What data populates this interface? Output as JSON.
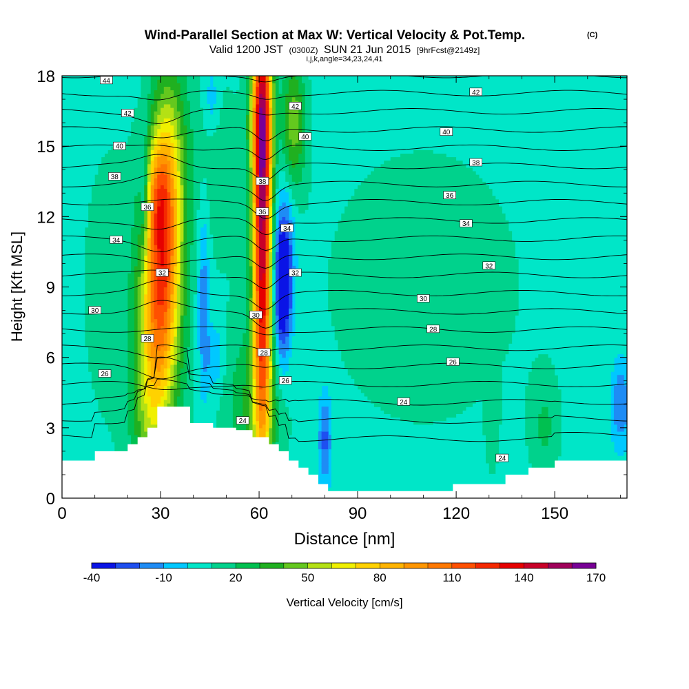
{
  "title": {
    "main": "Wind-Parallel Section at Max W: Vertical Velocity & Pot.Temp.",
    "copyright": "(C)",
    "valid_prefix": "Valid 1200 JST",
    "valid_utc": "(0300Z)",
    "valid_date": "SUN 21 Jun 2015",
    "forecast": "[9hrFcst@2149z]",
    "indices": "i,j,k,angle=34,23,24,41"
  },
  "chart_data": {
    "type": "heatmap",
    "xlabel": "Distance [nm]",
    "ylabel": "Height [Kft MSL]",
    "xlim": [
      0,
      172
    ],
    "ylim": [
      0,
      18
    ],
    "xticks": [
      0,
      30,
      60,
      90,
      120,
      150
    ],
    "yticks": [
      0,
      3,
      6,
      9,
      12,
      15,
      18
    ],
    "colorbar": {
      "label": "Vertical Velocity [cm/s]",
      "levels": [
        -40,
        -30,
        -20,
        -10,
        0,
        10,
        20,
        30,
        40,
        50,
        60,
        70,
        80,
        90,
        100,
        110,
        120,
        130,
        140,
        150,
        160,
        170
      ],
      "tick_labels": [
        "-40",
        "-10",
        "20",
        "50",
        "80",
        "110",
        "140",
        "170"
      ],
      "colors": [
        "#0a14e6",
        "#1e4ff0",
        "#1e8cf5",
        "#00c8ff",
        "#00e6c8",
        "#00d28c",
        "#00c050",
        "#20b020",
        "#64c81e",
        "#b4e114",
        "#f0f000",
        "#ffd200",
        "#ffb400",
        "#ff9600",
        "#ff7800",
        "#ff5000",
        "#f52800",
        "#e60000",
        "#c80028",
        "#a0005a",
        "#780096"
      ]
    },
    "background_velocity": 5,
    "terrain": [
      [
        0,
        1.6
      ],
      [
        10,
        1.6
      ],
      [
        10,
        2.0
      ],
      [
        20,
        2.0
      ],
      [
        20,
        2.3
      ],
      [
        23,
        2.3
      ],
      [
        23,
        2.6
      ],
      [
        26,
        2.6
      ],
      [
        26,
        3.0
      ],
      [
        29,
        3.0
      ],
      [
        29,
        3.9
      ],
      [
        39,
        3.9
      ],
      [
        39,
        3.2
      ],
      [
        46,
        3.2
      ],
      [
        46,
        3.0
      ],
      [
        53,
        3.0
      ],
      [
        53,
        2.9
      ],
      [
        58,
        2.9
      ],
      [
        58,
        2.6
      ],
      [
        63,
        2.6
      ],
      [
        63,
        2.3
      ],
      [
        66,
        2.3
      ],
      [
        66,
        2.0
      ],
      [
        69,
        2.0
      ],
      [
        69,
        1.6
      ],
      [
        72,
        1.6
      ],
      [
        72,
        1.3
      ],
      [
        75,
        1.3
      ],
      [
        75,
        1.0
      ],
      [
        78,
        1.0
      ],
      [
        78,
        0.6
      ],
      [
        81,
        0.6
      ],
      [
        81,
        0.3
      ],
      [
        110,
        0.3
      ],
      [
        110,
        0.3
      ],
      [
        119,
        0.3
      ],
      [
        119,
        0.6
      ],
      [
        135,
        0.6
      ],
      [
        135,
        1.0
      ],
      [
        142,
        1.0
      ],
      [
        142,
        1.3
      ],
      [
        150,
        1.3
      ],
      [
        150,
        1.6
      ],
      [
        172,
        1.6
      ]
    ],
    "velocity_features": [
      {
        "x": 30.5,
        "y": 10.5,
        "sx": 4.0,
        "sy": 4.5,
        "amp": 115,
        "tilt": 0.25
      },
      {
        "x": 29.0,
        "y": 13.0,
        "sx": 2.5,
        "sy": 1.5,
        "amp": 25,
        "tilt": 0
      },
      {
        "x": 61.0,
        "y": 12.0,
        "sx": 2.0,
        "sy": 7.0,
        "amp": 145,
        "tilt": 0
      },
      {
        "x": 60.5,
        "y": 16.5,
        "sx": 2.5,
        "sy": 2.0,
        "amp": 40,
        "tilt": 0
      },
      {
        "x": 70.5,
        "y": 16.0,
        "sx": 2.5,
        "sy": 2.0,
        "amp": 40,
        "tilt": 0
      },
      {
        "x": 26.0,
        "y": 3.5,
        "sx": 4.0,
        "sy": 2.5,
        "amp": 20,
        "tilt": 0
      },
      {
        "x": 33.0,
        "y": 6.0,
        "sx": 5.0,
        "sy": 3.0,
        "amp": 15,
        "tilt": 0
      },
      {
        "x": 58.0,
        "y": 4.0,
        "sx": 6.0,
        "sy": 2.5,
        "amp": 25,
        "tilt": 0
      },
      {
        "x": 16.0,
        "y": 9.0,
        "sx": 8.0,
        "sy": 5.0,
        "amp": 10,
        "tilt": 0
      },
      {
        "x": 47.0,
        "y": 14.0,
        "sx": 8.0,
        "sy": 3.0,
        "amp": 10,
        "tilt": 0
      },
      {
        "x": 110.0,
        "y": 9.0,
        "sx": 30.0,
        "sy": 6.0,
        "amp": 8,
        "tilt": 0
      },
      {
        "x": 147.0,
        "y": 3.0,
        "sx": 3.0,
        "sy": 1.5,
        "amp": 15,
        "tilt": 0
      },
      {
        "x": 131.0,
        "y": 3.2,
        "sx": 1.2,
        "sy": 1.2,
        "amp": 12,
        "tilt": 0
      },
      {
        "x": 67.0,
        "y": 8.5,
        "sx": 2.0,
        "sy": 2.0,
        "amp": -50,
        "tilt": 0
      },
      {
        "x": 67.5,
        "y": 11.0,
        "sx": 2.5,
        "sy": 2.0,
        "amp": -25,
        "tilt": 0
      },
      {
        "x": 25.0,
        "y": 13.0,
        "sx": 1.0,
        "sy": 1.8,
        "amp": -25,
        "tilt": 0
      },
      {
        "x": 43.0,
        "y": 8.5,
        "sx": 1.3,
        "sy": 3.0,
        "amp": -25,
        "tilt": 0
      },
      {
        "x": 46.5,
        "y": 6.0,
        "sx": 2.0,
        "sy": 1.0,
        "amp": -18,
        "tilt": 0
      },
      {
        "x": 45.5,
        "y": 17.0,
        "sx": 1.5,
        "sy": 1.0,
        "amp": -15,
        "tilt": 0
      },
      {
        "x": 80.0,
        "y": 2.5,
        "sx": 1.5,
        "sy": 1.5,
        "amp": -30,
        "tilt": 0
      },
      {
        "x": 170.0,
        "y": 4.0,
        "sx": 2.0,
        "sy": 1.3,
        "amp": -25,
        "tilt": 0
      }
    ],
    "theta_levels": [
      22,
      23,
      24,
      25,
      26,
      27,
      28,
      29,
      30,
      31,
      32,
      33,
      34,
      35,
      36,
      37,
      38,
      39,
      40,
      41,
      42,
      43,
      44,
      45
    ],
    "theta_labels": [
      {
        "x": 13.5,
        "y": 17.8,
        "text": "44"
      },
      {
        "x": 20,
        "y": 16.4,
        "text": "42"
      },
      {
        "x": 17.5,
        "y": 15.0,
        "text": "40"
      },
      {
        "x": 16,
        "y": 13.7,
        "text": "38"
      },
      {
        "x": 26,
        "y": 12.4,
        "text": "36"
      },
      {
        "x": 16.5,
        "y": 11.0,
        "text": "34"
      },
      {
        "x": 30.5,
        "y": 9.6,
        "text": "32"
      },
      {
        "x": 10,
        "y": 8.0,
        "text": "30"
      },
      {
        "x": 26,
        "y": 6.8,
        "text": "28"
      },
      {
        "x": 13,
        "y": 5.3,
        "text": "26"
      },
      {
        "x": 55,
        "y": 3.3,
        "text": "24"
      },
      {
        "x": 71,
        "y": 16.7,
        "text": "42"
      },
      {
        "x": 74,
        "y": 15.4,
        "text": "40"
      },
      {
        "x": 61,
        "y": 13.5,
        "text": "38"
      },
      {
        "x": 61,
        "y": 12.2,
        "text": "36"
      },
      {
        "x": 68.5,
        "y": 11.5,
        "text": "34"
      },
      {
        "x": 71,
        "y": 9.6,
        "text": "32"
      },
      {
        "x": 59,
        "y": 7.8,
        "text": "30"
      },
      {
        "x": 61.5,
        "y": 6.2,
        "text": "28"
      },
      {
        "x": 68,
        "y": 5.0,
        "text": "26"
      },
      {
        "x": 126,
        "y": 17.3,
        "text": "42"
      },
      {
        "x": 117,
        "y": 15.6,
        "text": "40"
      },
      {
        "x": 126,
        "y": 14.3,
        "text": "38"
      },
      {
        "x": 118,
        "y": 12.9,
        "text": "36"
      },
      {
        "x": 123,
        "y": 11.7,
        "text": "34"
      },
      {
        "x": 130,
        "y": 9.9,
        "text": "32"
      },
      {
        "x": 110,
        "y": 8.5,
        "text": "30"
      },
      {
        "x": 113,
        "y": 7.2,
        "text": "28"
      },
      {
        "x": 119,
        "y": 5.8,
        "text": "26"
      },
      {
        "x": 104,
        "y": 4.1,
        "text": "24"
      },
      {
        "x": 134,
        "y": 1.7,
        "text": "24"
      }
    ]
  }
}
